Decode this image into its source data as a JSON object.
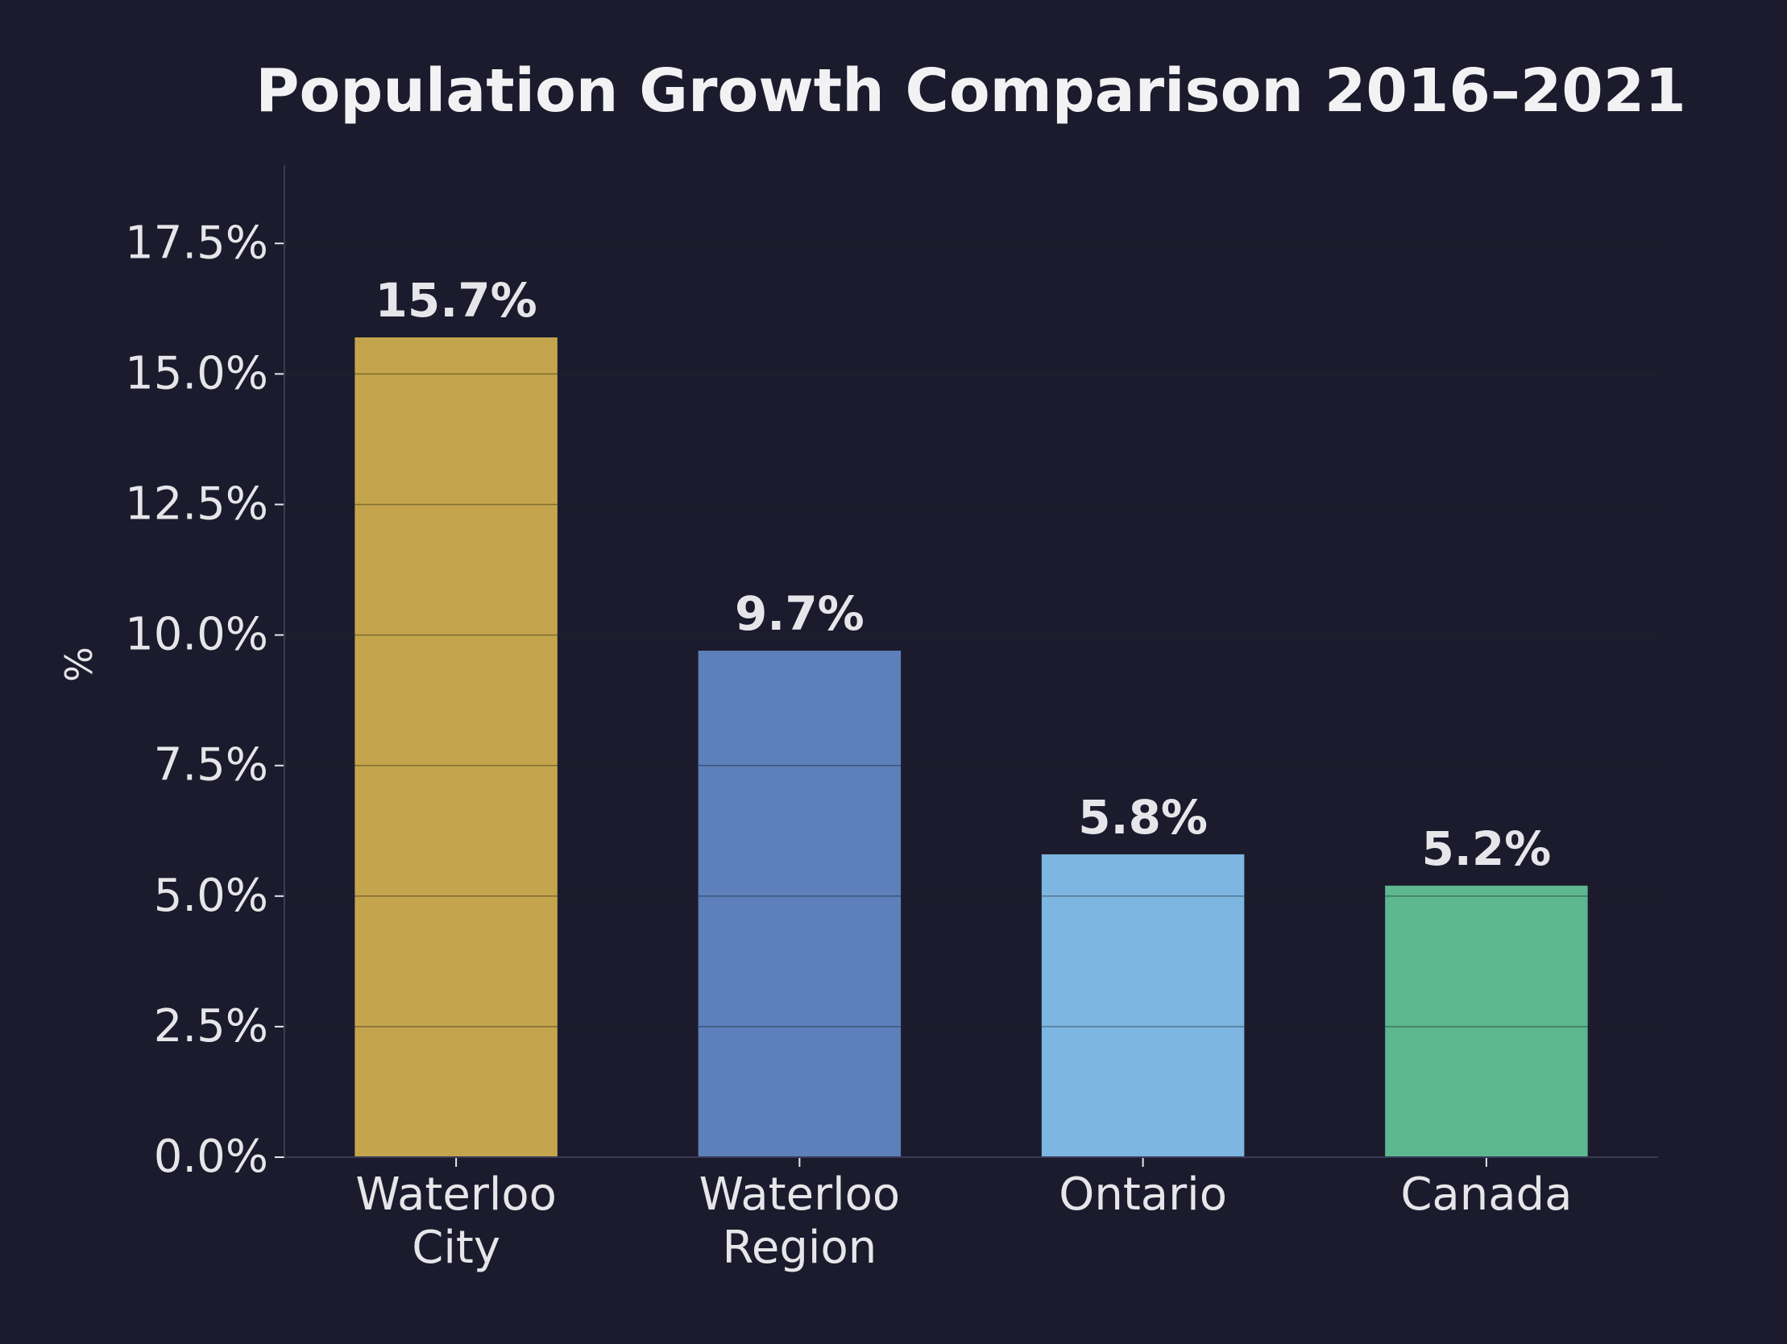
{
  "chart_data": {
    "type": "bar",
    "title": "Population Growth Comparison 2016–2021",
    "xlabel": "",
    "ylabel": "%",
    "categories": [
      [
        "Waterloo",
        "City"
      ],
      [
        "Waterloo",
        "Region"
      ],
      [
        "Ontario"
      ],
      [
        "Canada"
      ]
    ],
    "values": [
      15.7,
      9.7,
      5.8,
      5.2
    ],
    "value_labels": [
      "15.7%",
      "9.7%",
      "5.8%",
      "5.2%"
    ],
    "colors": [
      "#c4a54e",
      "#5d80bb",
      "#7db6e0",
      "#5db78f"
    ],
    "ylim": [
      0,
      19
    ],
    "yticks": [
      0,
      2.5,
      5,
      7.5,
      10,
      12.5,
      15,
      17.5
    ],
    "ytick_labels": [
      "0.0%",
      "2.5%",
      "5.0%",
      "7.5%",
      "10.0%",
      "12.5%",
      "15.0%",
      "17.5%"
    ],
    "grid": true,
    "legend": "none"
  },
  "style": {
    "background": "#1b1b2d",
    "text_color": "#e6e6ea",
    "title_color": "#f2f2f4",
    "axis_color": "#3a3a58",
    "grid_color": "#2a2a40"
  }
}
